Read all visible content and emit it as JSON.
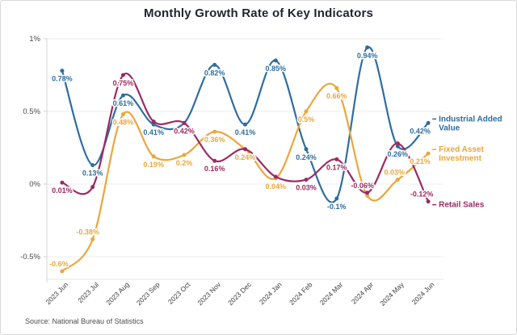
{
  "title": "Monthly Growth Rate of Key Indicators",
  "source_note": "Source: National Bureau of Statistics",
  "chart_data": {
    "type": "line",
    "categories": [
      "2023 Jun",
      "2023 Jul",
      "2023 Aug",
      "2023 Sep",
      "2023 Oct",
      "2023 Nov",
      "2023 Dec",
      "2024 Jan",
      "2024 Feb",
      "2024 Mar",
      "2024 Apr",
      "2024 May",
      "2024 Jun"
    ],
    "y_axis": {
      "ticks": [
        {
          "label": "1%",
          "value": 1
        },
        {
          "label": "0.5%",
          "value": 0.5
        },
        {
          "label": "0%",
          "value": 0
        },
        {
          "label": "-0.5%",
          "value": -0.5
        }
      ],
      "min": -0.72,
      "max": 1.05,
      "grid": true
    },
    "legend_position": "line-end",
    "series": [
      {
        "name": "Industrial Added Value",
        "name_lines": [
          "Industrial Added",
          "Value"
        ],
        "name_dy": 0,
        "color": "#2f6d9f",
        "values": [
          0.78,
          0.13,
          0.61,
          0.41,
          0.42,
          0.82,
          0.41,
          0.85,
          0.24,
          -0.1,
          0.94,
          0.26,
          0.42
        ],
        "labels": [
          {
            "t": "0.78%"
          },
          {
            "t": "0.13%"
          },
          {
            "t": "0.61%"
          },
          {
            "t": "0.41%"
          },
          null,
          {
            "t": "0.82%"
          },
          {
            "t": "0.41%"
          },
          {
            "t": "0.85%"
          },
          {
            "t": "0.24%"
          },
          {
            "t": "-0.1%"
          },
          {
            "t": "0.94%"
          },
          {
            "t": "0.26%"
          },
          {
            "t": "0.42%",
            "dx": -10
          }
        ]
      },
      {
        "name": "Fixed Asset Investment",
        "name_lines": [
          "Fixed Asset",
          "Investment"
        ],
        "name_dy": 0,
        "color": "#eaa73c",
        "values": [
          -0.6,
          -0.38,
          0.48,
          0.19,
          0.2,
          0.36,
          0.24,
          0.04,
          0.5,
          0.66,
          -0.08,
          0.03,
          0.21
        ],
        "labels": [
          {
            "t": "-0.6%",
            "side": "above",
            "dx": -4
          },
          {
            "t": "-0.38%",
            "side": "above",
            "dx": -6
          },
          {
            "t": "0.48%"
          },
          {
            "t": "0.19%"
          },
          {
            "t": "0.2%"
          },
          {
            "t": "0.36%"
          },
          {
            "t": "0.24%"
          },
          {
            "t": "0.04%"
          },
          {
            "t": "0.5%"
          },
          {
            "t": "0.66%"
          },
          null,
          {
            "t": "0.03%",
            "side": "above",
            "dx": -4
          },
          {
            "t": "0.21%",
            "dx": -10
          }
        ]
      },
      {
        "name": "Retail Sales",
        "name_lines": [
          "Retail Sales"
        ],
        "name_dy": 9,
        "color": "#9b2b62",
        "values": [
          0.01,
          -0.02,
          0.75,
          0.43,
          0.42,
          0.16,
          0.24,
          0.05,
          0.03,
          0.17,
          -0.06,
          0.28,
          -0.12
        ],
        "labels": [
          {
            "t": "0.01%"
          },
          null,
          {
            "t": "0.75%"
          },
          null,
          {
            "t": "0.42%"
          },
          {
            "t": "0.16%"
          },
          null,
          null,
          {
            "t": "0.03%"
          },
          {
            "t": "0.17%"
          },
          {
            "t": "-0.06%",
            "side": "above",
            "dx": -6
          },
          null,
          {
            "t": "-0.12%",
            "side": "above",
            "dx": -8
          }
        ]
      }
    ]
  }
}
